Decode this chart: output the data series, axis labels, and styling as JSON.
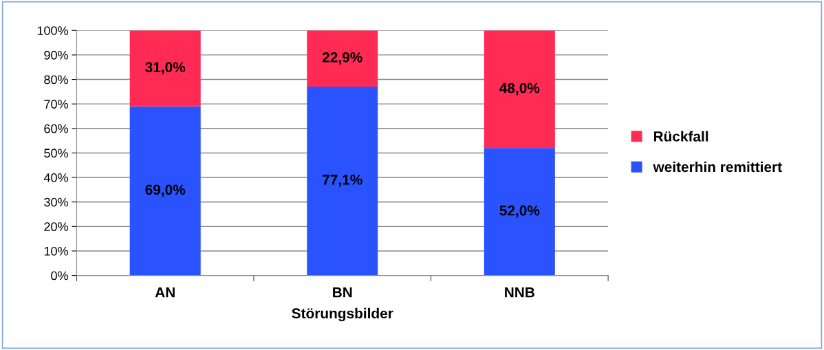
{
  "chart_data": {
    "type": "bar",
    "stacked": true,
    "xlabel": "Störungsbilder",
    "categories": [
      "AN",
      "BN",
      "NNB"
    ],
    "series": [
      {
        "name": "weiterhin remittiert",
        "color": "#2b52ff",
        "values": [
          69.0,
          77.1,
          52.0
        ],
        "value_labels": [
          "69,0%",
          "77,1%",
          "52,0%"
        ]
      },
      {
        "name": "Rückfall",
        "color": "#ff2b55",
        "values": [
          31.0,
          22.9,
          48.0
        ],
        "value_labels": [
          "31,0%",
          "22,9%",
          "48,0%"
        ]
      }
    ],
    "ylim": [
      0,
      100
    ],
    "yticks": [
      {
        "value": 0,
        "label": "0%"
      },
      {
        "value": 10,
        "label": "10%"
      },
      {
        "value": 20,
        "label": "20%"
      },
      {
        "value": 30,
        "label": "30%"
      },
      {
        "value": 40,
        "label": "40%"
      },
      {
        "value": 50,
        "label": "50%"
      },
      {
        "value": 60,
        "label": "60%"
      },
      {
        "value": 70,
        "label": "70%"
      },
      {
        "value": 80,
        "label": "80%"
      },
      {
        "value": 90,
        "label": "90%"
      },
      {
        "value": 100,
        "label": "100%"
      }
    ],
    "grid": "y",
    "legend": "right"
  }
}
